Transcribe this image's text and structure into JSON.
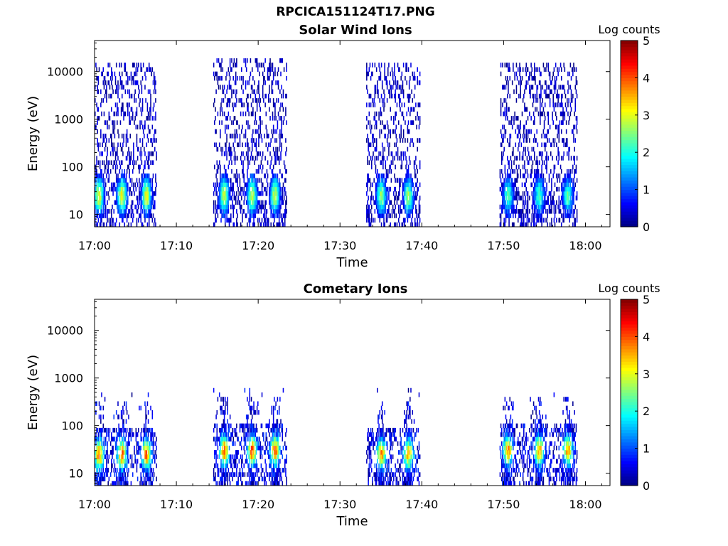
{
  "figure": {
    "title": "RPCICA151124T17.PNG"
  },
  "chart_data": [
    {
      "type": "heatmap",
      "title": "Solar Wind Ions",
      "xlabel": "Time",
      "ylabel": "Energy (eV)",
      "x_ticks": [
        "17:00",
        "17:10",
        "17:20",
        "17:30",
        "17:40",
        "17:50",
        "18:00"
      ],
      "y_ticks": [
        "10",
        "100",
        "1000",
        "10000"
      ],
      "yscale": "log",
      "ylim": [
        5.5,
        45000
      ],
      "xlim_minutes": [
        0,
        63
      ],
      "colorbar": {
        "label": "Log counts",
        "ticks": [
          "0",
          "1",
          "2",
          "3",
          "4",
          "5"
        ],
        "range": [
          0,
          5
        ],
        "colormap": "jet"
      },
      "grid": false,
      "bursts": [
        {
          "start_min": 0.0,
          "end_min": 7.5,
          "max_energy_eV": 15000,
          "peak_energy_eV": 25,
          "peak_log_counts": 2.8,
          "peaks_min": [
            0.5,
            3.3,
            6.3
          ]
        },
        {
          "start_min": 14.5,
          "end_min": 23.5,
          "max_energy_eV": 20000,
          "peak_energy_eV": 25,
          "peak_log_counts": 2.6,
          "peaks_min": [
            15.8,
            19.2,
            22.0
          ]
        },
        {
          "start_min": 33.2,
          "end_min": 39.8,
          "max_energy_eV": 15000,
          "peak_energy_eV": 25,
          "peak_log_counts": 2.4,
          "peaks_min": [
            35.0,
            38.3
          ]
        },
        {
          "start_min": 49.5,
          "end_min": 59.0,
          "max_energy_eV": 15000,
          "peak_energy_eV": 25,
          "peak_log_counts": 2.0,
          "peaks_min": [
            50.5,
            54.3,
            57.8
          ]
        }
      ]
    },
    {
      "type": "heatmap",
      "title": "Cometary Ions",
      "xlabel": "Time",
      "ylabel": "Energy (eV)",
      "x_ticks": [
        "17:00",
        "17:10",
        "17:20",
        "17:30",
        "17:40",
        "17:50",
        "18:00"
      ],
      "y_ticks": [
        "10",
        "100",
        "1000",
        "10000"
      ],
      "yscale": "log",
      "ylim": [
        5.5,
        45000
      ],
      "xlim_minutes": [
        0,
        63
      ],
      "colorbar": {
        "label": "Log counts",
        "ticks": [
          "0",
          "1",
          "2",
          "3",
          "4",
          "5"
        ],
        "range": [
          0,
          5
        ],
        "colormap": "jet"
      },
      "grid": false,
      "bursts": [
        {
          "start_min": 0.0,
          "end_min": 7.5,
          "max_energy_eV": 500,
          "peak_energy_eV": 25,
          "peak_log_counts": 3.5,
          "peaks_min": [
            0.5,
            3.3,
            6.3
          ]
        },
        {
          "start_min": 14.5,
          "end_min": 23.5,
          "max_energy_eV": 600,
          "peak_energy_eV": 30,
          "peak_log_counts": 3.6,
          "peaks_min": [
            15.8,
            19.2,
            22.0
          ]
        },
        {
          "start_min": 33.2,
          "end_min": 39.8,
          "max_energy_eV": 600,
          "peak_energy_eV": 25,
          "peak_log_counts": 3.2,
          "peaks_min": [
            35.0,
            38.3
          ]
        },
        {
          "start_min": 49.5,
          "end_min": 59.0,
          "max_energy_eV": 600,
          "peak_energy_eV": 30,
          "peak_log_counts": 3.3,
          "peaks_min": [
            50.5,
            54.3,
            57.8
          ]
        }
      ]
    }
  ]
}
